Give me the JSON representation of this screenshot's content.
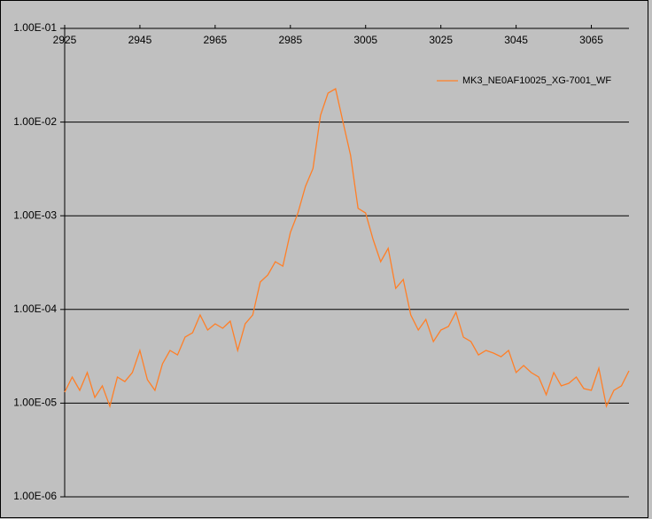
{
  "chart_data": {
    "type": "line",
    "x": [
      2925,
      2927,
      2929,
      2931,
      2933,
      2935,
      2937,
      2939,
      2941,
      2943,
      2945,
      2947,
      2949,
      2951,
      2953,
      2955,
      2957,
      2959,
      2961,
      2963,
      2965,
      2967,
      2969,
      2971,
      2973,
      2975,
      2977,
      2979,
      2981,
      2983,
      2985,
      2987,
      2989,
      2991,
      2993,
      2995,
      2997,
      2999,
      3001,
      3003,
      3005,
      3007,
      3009,
      3011,
      3013,
      3015,
      3017,
      3019,
      3021,
      3023,
      3025,
      3027,
      3029,
      3031,
      3033,
      3035,
      3037,
      3039,
      3041,
      3043,
      3045,
      3047,
      3049,
      3051,
      3053,
      3055,
      3057,
      3059,
      3061,
      3063,
      3065,
      3067,
      3069,
      3071,
      3073,
      3075
    ],
    "series": [
      {
        "name": "MK3_NE0AF10025_XG-7001_WF",
        "color": "#ff7f27",
        "values": [
          1.31e-05,
          1.9e-05,
          1.37e-05,
          2.12e-05,
          1.15e-05,
          1.53e-05,
          9.25e-06,
          1.9e-05,
          1.7e-05,
          2.12e-05,
          3.65e-05,
          1.78e-05,
          1.37e-05,
          2.63e-05,
          3.65e-05,
          3.27e-05,
          5.07e-05,
          5.65e-05,
          8.73e-05,
          6.03e-05,
          7.03e-05,
          6.3e-05,
          7.5e-05,
          3.65e-05,
          7.03e-05,
          8.73e-05,
          0.000196,
          0.000233,
          0.000323,
          0.00029,
          0.000664,
          0.00107,
          0.00206,
          0.00319,
          0.0118,
          0.0204,
          0.0227,
          0.00991,
          0.00443,
          0.0012,
          0.00107,
          0.000557,
          0.000323,
          0.000449,
          0.000168,
          0.000209,
          8.73e-05,
          6.03e-05,
          7.83e-05,
          4.54e-05,
          6.03e-05,
          6.58e-05,
          9.33e-05,
          5.07e-05,
          4.54e-05,
          3.27e-05,
          3.65e-05,
          3.42e-05,
          3.13e-05,
          3.65e-05,
          2.12e-05,
          2.52e-05,
          2.12e-05,
          1.9e-05,
          1.23e-05,
          2.12e-05,
          1.53e-05,
          1.63e-05,
          1.9e-05,
          1.43e-05,
          1.37e-05,
          2.36e-05,
          9.25e-06,
          1.37e-05,
          1.53e-05,
          2.21e-05
        ]
      }
    ],
    "xlim": [
      2925,
      3075
    ],
    "xticks": [
      2925,
      2945,
      2965,
      2985,
      3005,
      3025,
      3045,
      3065
    ],
    "ylim": [
      1e-06,
      0.1
    ],
    "log_y": true,
    "yticks": [
      {
        "value": 1e-06,
        "label": "1.00E-06"
      },
      {
        "value": 1e-05,
        "label": "1.00E-05"
      },
      {
        "value": 0.0001,
        "label": "1.00E-04"
      },
      {
        "value": 0.001,
        "label": "1.00E-03"
      },
      {
        "value": 0.01,
        "label": "1.00E-02"
      },
      {
        "value": 0.1,
        "label": "1.00E-01"
      }
    ],
    "grid": true,
    "legend": "top-right",
    "background": "#c0c0c0"
  }
}
